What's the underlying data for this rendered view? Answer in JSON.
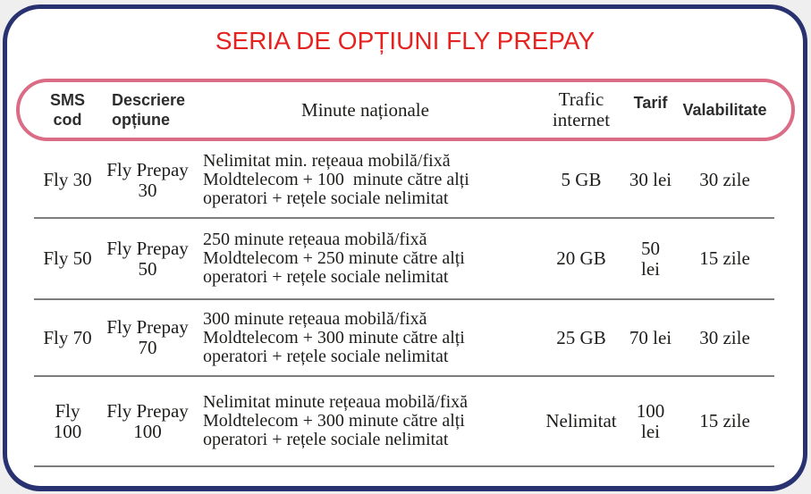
{
  "title": "SERIA DE OPȚIUNI FLY PREPAY",
  "colors": {
    "title_red": "#e42320",
    "card_border_navy": "#293270",
    "header_capsule_pink": "#db6c86",
    "row_separator_gray": "#7c7c7c",
    "body_text": "#1d1d1b",
    "page_background": "#efefef"
  },
  "table": {
    "columns": [
      {
        "id": "sms_cod",
        "label": "SMS\ncod"
      },
      {
        "id": "descriere_optiune",
        "label": "Descriere\nopțiune"
      },
      {
        "id": "minute_nationale",
        "label": "Minute naționale"
      },
      {
        "id": "trafic_internet",
        "label": "Trafic\ninternet"
      },
      {
        "id": "tarif",
        "label": "Tarif"
      },
      {
        "id": "valabilitate",
        "label": "Valabilitate"
      }
    ],
    "rows": [
      {
        "sms_cod": "Fly 30",
        "descriere_optiune": "Fly Prepay\n30",
        "minute_nationale": "Nelimitat min. rețeaua mobilă/fixă\nMoldtelecom + 100  minute către alți\noperatori + rețele sociale nelimitat",
        "trafic_internet": "5 GB",
        "tarif": "30 lei",
        "valabilitate": "30 zile"
      },
      {
        "sms_cod": "Fly 50",
        "descriere_optiune": "Fly Prepay\n50",
        "minute_nationale": "250 minute rețeaua mobilă/fixă\nMoldtelecom + 250 minute către alți\noperatori + rețele sociale nelimitat",
        "trafic_internet": "20 GB",
        "tarif": "50\nlei",
        "valabilitate": "15 zile"
      },
      {
        "sms_cod": "Fly 70",
        "descriere_optiune": "Fly Prepay\n70",
        "minute_nationale": "300 minute rețeaua mobilă/fixă\nMoldtelecom + 300 minute către alți\noperatori + rețele sociale nelimitat",
        "trafic_internet": "25 GB",
        "tarif": "70 lei",
        "valabilitate": "30 zile"
      },
      {
        "sms_cod": "Fly\n100",
        "descriere_optiune": "Fly Prepay\n100",
        "minute_nationale": "Nelimitat minute rețeaua mobilă/fixă\nMoldtelecom + 300 minute către alți\noperatori + rețele sociale nelimitat",
        "trafic_internet": "Nelimitat",
        "tarif": "100\nlei",
        "valabilitate": "15 zile"
      }
    ]
  }
}
